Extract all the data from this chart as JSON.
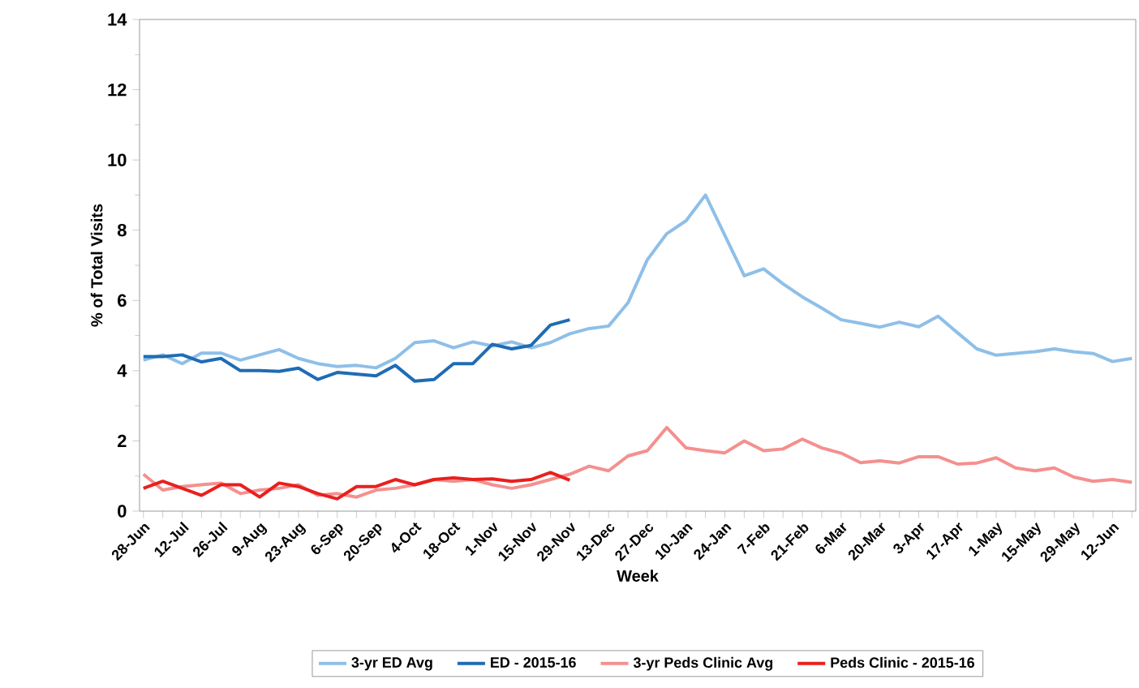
{
  "chart_data": {
    "type": "line",
    "xlabel": "Week",
    "ylabel": "% of Total Visits",
    "categories": [
      "28-Jun",
      null,
      "12-Jul",
      null,
      "26-Jul",
      null,
      "9-Aug",
      null,
      "23-Aug",
      null,
      "6-Sep",
      null,
      "20-Sep",
      null,
      "4-Oct",
      null,
      "18-Oct",
      null,
      "1-Nov",
      null,
      "15-Nov",
      null,
      "29-Nov",
      null,
      "13-Dec",
      null,
      "27-Dec",
      null,
      "10-Jan",
      null,
      "24-Jan",
      null,
      "7-Feb",
      null,
      "21-Feb",
      null,
      "6-Mar",
      null,
      "20-Mar",
      null,
      "3-Apr",
      null,
      "17-Apr",
      null,
      "1-May",
      null,
      "15-May",
      null,
      "29-May",
      null,
      "12-Jun",
      null
    ],
    "series": [
      {
        "name": "3-yr ED Avg",
        "color": "#8ebfe8",
        "values": [
          4.3,
          4.45,
          4.2,
          4.5,
          4.5,
          4.3,
          4.45,
          4.6,
          4.35,
          4.2,
          4.12,
          4.15,
          4.08,
          4.35,
          4.8,
          4.85,
          4.65,
          4.82,
          4.7,
          4.82,
          4.65,
          4.8,
          5.05,
          5.2,
          5.27,
          5.93,
          7.16,
          7.9,
          8.27,
          9.0,
          7.85,
          6.7,
          6.9,
          6.47,
          6.1,
          5.78,
          5.45,
          5.35,
          5.24,
          5.38,
          5.25,
          5.55,
          5.08,
          4.62,
          4.44,
          4.49,
          4.54,
          4.62,
          4.54,
          4.49,
          4.26,
          4.35
        ]
      },
      {
        "name": "ED - 2015-16",
        "color": "#1f6cb4",
        "values": [
          4.4,
          4.4,
          4.45,
          4.25,
          4.35,
          4.0,
          4.0,
          3.98,
          4.07,
          3.75,
          3.95,
          3.9,
          3.85,
          4.15,
          3.7,
          3.75,
          4.2,
          4.2,
          4.75,
          4.62,
          4.72,
          5.3,
          5.45,
          null,
          null,
          null,
          null,
          null,
          null,
          null,
          null,
          null,
          null,
          null,
          null,
          null,
          null,
          null,
          null,
          null,
          null,
          null,
          null,
          null,
          null,
          null,
          null,
          null,
          null,
          null,
          null,
          null
        ]
      },
      {
        "name": "3-yr Peds Clinic Avg",
        "color": "#f4908f",
        "values": [
          1.05,
          0.6,
          0.7,
          0.75,
          0.8,
          0.5,
          0.6,
          0.65,
          0.75,
          0.45,
          0.5,
          0.4,
          0.6,
          0.65,
          0.75,
          0.9,
          0.85,
          0.9,
          0.75,
          0.65,
          0.75,
          0.9,
          1.05,
          1.28,
          1.15,
          1.57,
          1.72,
          2.38,
          1.8,
          1.72,
          1.66,
          2.0,
          1.72,
          1.77,
          2.05,
          1.8,
          1.65,
          1.38,
          1.43,
          1.37,
          1.55,
          1.55,
          1.34,
          1.37,
          1.52,
          1.23,
          1.15,
          1.23,
          0.97,
          0.85,
          0.9,
          0.82
        ]
      },
      {
        "name": "Peds Clinic - 2015-16",
        "color": "#e8201e",
        "values": [
          0.65,
          0.85,
          0.65,
          0.45,
          0.75,
          0.75,
          0.4,
          0.8,
          0.7,
          0.5,
          0.35,
          0.7,
          0.7,
          0.9,
          0.75,
          0.9,
          0.95,
          0.9,
          0.92,
          0.85,
          0.9,
          1.1,
          0.88,
          null,
          null,
          null,
          null,
          null,
          null,
          null,
          null,
          null,
          null,
          null,
          null,
          null,
          null,
          null,
          null,
          null,
          null,
          null,
          null,
          null,
          null,
          null,
          null,
          null,
          null,
          null,
          null,
          null
        ]
      }
    ],
    "ylim": [
      0,
      14
    ],
    "yticks": [
      0,
      2,
      4,
      6,
      8,
      10,
      12,
      14
    ],
    "legend": "bottom",
    "grid": false
  }
}
